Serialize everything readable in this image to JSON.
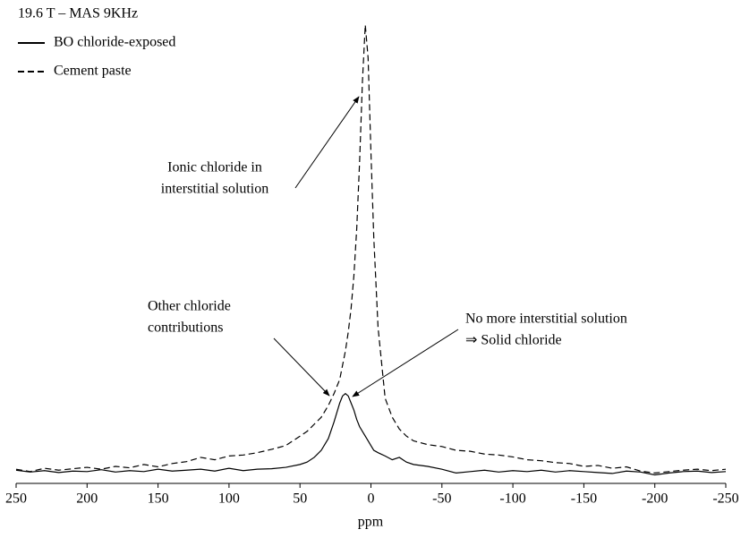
{
  "chart_data": {
    "type": "line",
    "title": "19.6 T – MAS 9KHz",
    "xlabel": "ppm",
    "xlim": [
      250,
      -250
    ],
    "xticks": [
      250,
      200,
      150,
      100,
      50,
      0,
      -50,
      -100,
      -150,
      -200,
      -250
    ],
    "ylim": [
      0,
      100
    ],
    "x": [
      250,
      240,
      230,
      220,
      210,
      200,
      190,
      180,
      170,
      160,
      150,
      140,
      130,
      120,
      110,
      100,
      90,
      80,
      70,
      60,
      50,
      45,
      40,
      35,
      30,
      26,
      22,
      20,
      18,
      16,
      14,
      12,
      10,
      8,
      6,
      4,
      2,
      0,
      -2,
      -5,
      -10,
      -15,
      -20,
      -25,
      -30,
      -40,
      -50,
      -60,
      -70,
      -80,
      -90,
      -100,
      -110,
      -120,
      -130,
      -140,
      -150,
      -160,
      -170,
      -180,
      -190,
      -200,
      -210,
      -220,
      -230,
      -240,
      -250
    ],
    "series": [
      {
        "name": "BO chloride-exposed",
        "color": "#000000",
        "style": "solid",
        "values": [
          2.8,
          2.4,
          2.7,
          2.3,
          2.6,
          2.5,
          2.9,
          2.4,
          2.7,
          2.5,
          3,
          2.6,
          2.8,
          3,
          2.6,
          3.2,
          2.7,
          3,
          3.1,
          3.4,
          4,
          4.5,
          5.5,
          7,
          9.5,
          13,
          17,
          18.5,
          19,
          18.5,
          17,
          15.5,
          13.5,
          12,
          11,
          10,
          9,
          8,
          7,
          6.5,
          5.8,
          5,
          5.5,
          4.5,
          4,
          3.6,
          3,
          2.2,
          2.5,
          2.8,
          2.4,
          2.7,
          2.5,
          2.8,
          2.4,
          2.7,
          2.5,
          2.3,
          2.1,
          2.6,
          2.4,
          1.8,
          2.2,
          2.5,
          2.6,
          2.3,
          2.5
        ]
      },
      {
        "name": "Cement paste",
        "color": "#000000",
        "style": "dashed",
        "values": [
          3,
          2.5,
          3.2,
          2.8,
          3.1,
          3.4,
          3,
          3.6,
          3.3,
          4,
          3.5,
          4.2,
          4.6,
          5.5,
          5,
          5.8,
          6,
          6.5,
          7.2,
          8,
          10,
          11,
          12.5,
          14,
          16.5,
          19,
          22,
          25,
          28,
          32,
          37,
          44,
          54,
          68,
          85,
          97,
          90,
          70,
          52,
          33,
          18,
          14,
          11.5,
          10,
          9,
          8.2,
          7.8,
          7,
          6.8,
          6.2,
          6,
          5.6,
          5,
          4.8,
          4.4,
          4.2,
          3.6,
          3.8,
          3.2,
          3.5,
          2.6,
          2.2,
          2.5,
          2.8,
          3,
          2.7,
          3
        ]
      }
    ],
    "annotations": [
      {
        "lines": [
          "Ionic chloride in",
          "interstitial solution"
        ]
      },
      {
        "lines": [
          "Other chloride",
          "contributions"
        ]
      },
      {
        "lines": [
          "No more interstitial solution",
          "⇒ Solid chloride"
        ]
      }
    ]
  }
}
